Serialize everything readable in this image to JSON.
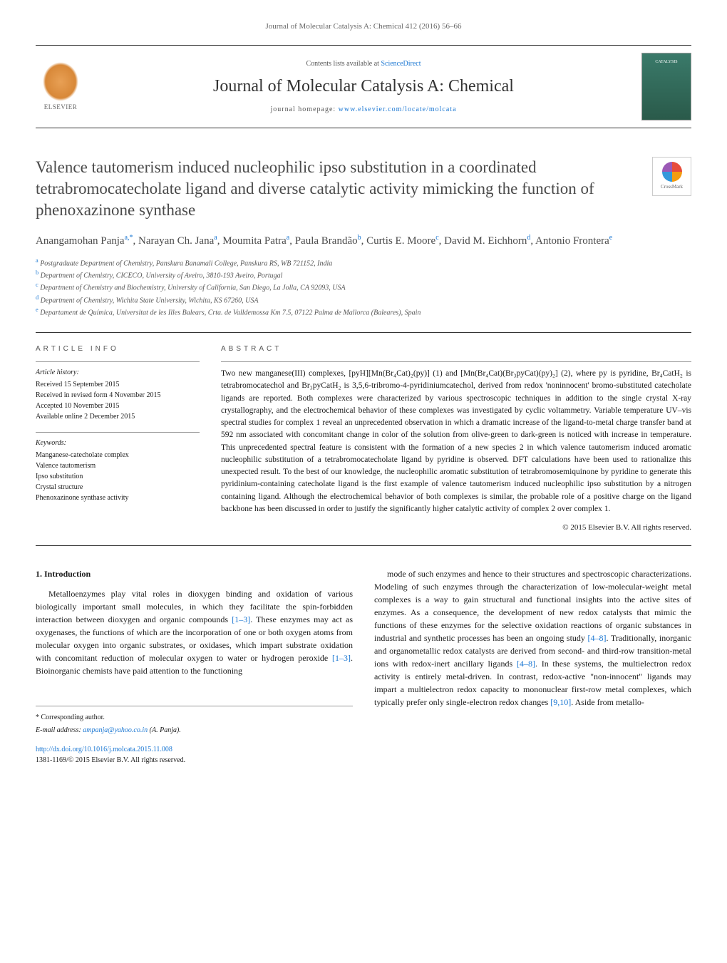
{
  "journal_ref": "Journal of Molecular Catalysis A: Chemical 412 (2016) 56–66",
  "header": {
    "contents_prefix": "Contents lists available at ",
    "contents_link": "ScienceDirect",
    "journal_title": "Journal of Molecular Catalysis A: Chemical",
    "homepage_prefix": "journal homepage: ",
    "homepage_url": "www.elsevier.com/locate/molcata",
    "publisher": "ELSEVIER",
    "cover_text": "CATALYSIS"
  },
  "article": {
    "title": "Valence tautomerism induced nucleophilic ipso substitution in a coordinated tetrabromocatecholate ligand and diverse catalytic activity mimicking the function of phenoxazinone synthase",
    "crossmark_label": "CrossMark",
    "authors_html": "Anangamohan Panja<sup>a,*</sup>, Narayan Ch. Jana<sup>a</sup>, Moumita Patra<sup>a</sup>, Paula Brandão<sup>b</sup>, Curtis E. Moore<sup>c</sup>, David M. Eichhorn<sup>d</sup>, Antonio Frontera<sup>e</sup>",
    "affiliations": [
      {
        "sup": "a",
        "text": "Postgraduate Department of Chemistry, Panskura Banamali College, Panskura RS, WB 721152, India"
      },
      {
        "sup": "b",
        "text": "Department of Chemistry, CICECO, University of Aveiro, 3810-193 Aveiro, Portugal"
      },
      {
        "sup": "c",
        "text": "Department of Chemistry and Biochemistry, University of California, San Diego, La Jolla, CA 92093, USA"
      },
      {
        "sup": "d",
        "text": "Department of Chemistry, Wichita State University, Wichita, KS 67260, USA"
      },
      {
        "sup": "e",
        "text": "Departament de Química, Universitat de les Illes Balears, Crta. de Valldemossa Km 7.5, 07122 Palma de Mallorca (Baleares), Spain"
      }
    ]
  },
  "info": {
    "heading": "ARTICLE INFO",
    "history_label": "Article history:",
    "history": [
      "Received 15 September 2015",
      "Received in revised form 4 November 2015",
      "Accepted 10 November 2015",
      "Available online 2 December 2015"
    ],
    "keywords_label": "Keywords:",
    "keywords": [
      "Manganese-catecholate complex",
      "Valence tautomerism",
      "Ipso substitution",
      "Crystal structure",
      "Phenoxazinone synthase activity"
    ]
  },
  "abstract": {
    "heading": "ABSTRACT",
    "text": "Two new manganese(III) complexes, [pyH][Mn(Br₄Cat)₂(py)] (1) and [Mn(Br₄Cat)(Br₃pyCat)(py)₂] (2), where py is pyridine, Br₄CatH₂ is tetrabromocatechol and Br₃pyCatH₂ is 3,5,6-tribromo-4-pyridiniumcatechol, derived from redox 'noninnocent' bromo-substituted catecholate ligands are reported. Both complexes were characterized by various spectroscopic techniques in addition to the single crystal X-ray crystallography, and the electrochemical behavior of these complexes was investigated by cyclic voltammetry. Variable temperature UV–vis spectral studies for complex 1 reveal an unprecedented observation in which a dramatic increase of the ligand-to-metal charge transfer band at 592 nm associated with concomitant change in color of the solution from olive-green to dark-green is noticed with increase in temperature. This unprecedented spectral feature is consistent with the formation of a new species 2 in which valence tautomerism induced aromatic nucleophilic substitution of a tetrabromocatecholate ligand by pyridine is observed. DFT calculations have been used to rationalize this unexpected result. To the best of our knowledge, the nucleophilic aromatic substitution of tetrabromosemiquinone by pyridine to generate this pyridinium-containing catecholate ligand is the first example of valence tautomerism induced nucleophilic ipso substitution by a nitrogen containing ligand. Although the electrochemical behavior of both complexes is similar, the probable role of a positive charge on the ligand backbone has been discussed in order to justify the significantly higher catalytic activity of complex 2 over complex 1.",
    "copyright": "© 2015 Elsevier B.V. All rights reserved."
  },
  "body": {
    "section_number": "1.",
    "section_title": "Introduction",
    "col1": "Metalloenzymes play vital roles in dioxygen binding and oxidation of various biologically important small molecules, in which they facilitate the spin-forbidden interaction between dioxygen and organic compounds [1–3]. These enzymes may act as oxygenases, the functions of which are the incorporation of one or both oxygen atoms from molecular oxygen into organic substrates, or oxidases, which impart substrate oxidation with concomitant reduction of molecular oxygen to water or hydrogen peroxide [1–3]. Bioinorganic chemists have paid attention to the functioning",
    "col2": "mode of such enzymes and hence to their structures and spectroscopic characterizations. Modeling of such enzymes through the characterization of low-molecular-weight metal complexes is a way to gain structural and functional insights into the active sites of enzymes. As a consequence, the development of new redox catalysts that mimic the functions of these enzymes for the selective oxidation reactions of organic substances in industrial and synthetic processes has been an ongoing study [4–8]. Traditionally, inorganic and organometallic redox catalysts are derived from second- and third-row transition-metal ions with redox-inert ancillary ligands [4–8]. In these systems, the multielectron redox activity is entirely metal-driven. In contrast, redox-active \"non-innocent\" ligands may impart a multielectron redox capacity to mononuclear first-row metal complexes, which typically prefer only single-electron redox changes [9,10]. Aside from metallo-",
    "refs": {
      "r1": "[1–3]",
      "r2": "[1–3]",
      "r3": "[4–8]",
      "r4": "[4–8]",
      "r5": "[9,10]"
    }
  },
  "footer": {
    "corresponding": "* Corresponding author.",
    "email_label": "E-mail address: ",
    "email": "ampanja@yahoo.co.in",
    "email_suffix": " (A. Panja).",
    "doi": "http://dx.doi.org/10.1016/j.molcata.2015.11.008",
    "issn": "1381-1169/© 2015 Elsevier B.V. All rights reserved."
  },
  "colors": {
    "link": "#1976d2",
    "text": "#1a1a1a",
    "muted": "#555555",
    "border": "#333333"
  }
}
